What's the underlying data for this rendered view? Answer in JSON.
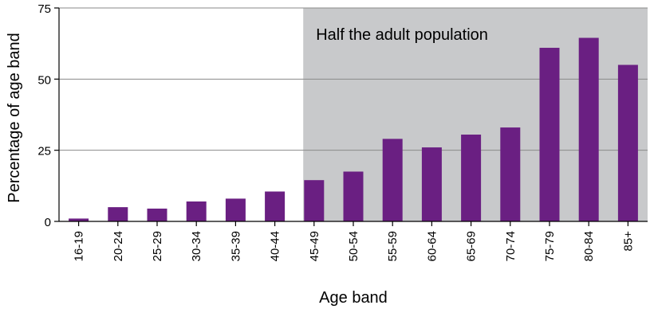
{
  "chart_data": {
    "type": "bar",
    "xlabel": "Age band",
    "ylabel": "Percentage of age band",
    "ylim": [
      0,
      75
    ],
    "yticks": [
      0,
      25,
      50,
      75
    ],
    "grid": "horizontal",
    "categories": [
      "16-19",
      "20-24",
      "25-29",
      "30-34",
      "35-39",
      "40-44",
      "45-49",
      "50-54",
      "55-59",
      "60-64",
      "65-69",
      "70-74",
      "75-79",
      "80-84",
      "85+"
    ],
    "values": [
      1,
      5,
      4.5,
      7,
      8,
      10.5,
      14.5,
      17.5,
      29,
      26,
      30.5,
      33,
      61,
      64.5,
      55
    ],
    "highlight": {
      "label": "Half the adult population",
      "from_category": "45-49",
      "to_category": "85+",
      "color": "#c8c9cb"
    },
    "bar_color": "#6a1f82"
  }
}
